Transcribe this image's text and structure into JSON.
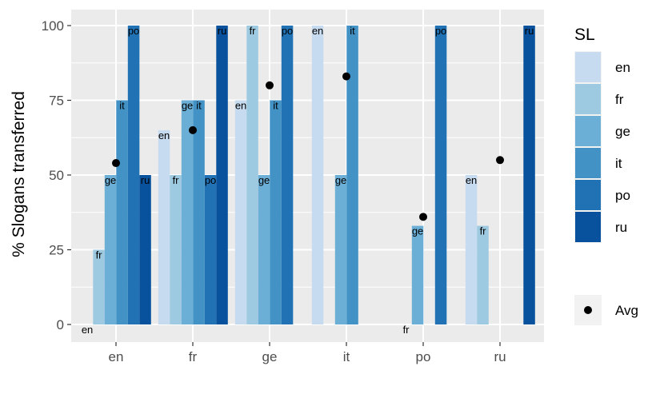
{
  "chart_data": {
    "type": "bar",
    "title": "",
    "xlabel": "",
    "ylabel": "% Slogans transferred",
    "ylim": [
      -5,
      105
    ],
    "grid": true,
    "categories": [
      "en",
      "fr",
      "ge",
      "it",
      "po",
      "ru"
    ],
    "yticks": [
      "0",
      "25",
      "50",
      "75",
      "100"
    ],
    "legend": {
      "title": "SL",
      "placement": "right",
      "entries": [
        "en",
        "fr",
        "ge",
        "it",
        "po",
        "ru"
      ],
      "avg_label": "Avg"
    },
    "colors": {
      "en": "#c6dbef",
      "fr": "#9ecae1",
      "ge": "#6baed6",
      "it": "#4292c6",
      "po": "#2171b5",
      "ru": "#08519c",
      "panel": "#ebebeb",
      "grid": "#ffffff",
      "avg": "#000000"
    },
    "series": [
      {
        "name": "en",
        "values": [
          0,
          65,
          75,
          100,
          null,
          50
        ]
      },
      {
        "name": "fr",
        "values": [
          25,
          50,
          100,
          null,
          0,
          33
        ]
      },
      {
        "name": "ge",
        "values": [
          50,
          75,
          50,
          50,
          33,
          null
        ]
      },
      {
        "name": "it",
        "values": [
          75,
          75,
          75,
          100,
          null,
          null
        ]
      },
      {
        "name": "po",
        "values": [
          100,
          50,
          100,
          null,
          100,
          null
        ]
      },
      {
        "name": "ru",
        "values": [
          50,
          100,
          null,
          null,
          null,
          100
        ]
      }
    ],
    "bar_labels": [
      [
        "en",
        "fr",
        "ge",
        "it",
        "po",
        "ru"
      ],
      [
        "en",
        "fr",
        "ge",
        "it",
        "po",
        "ru"
      ],
      [
        "en",
        "fr",
        "ge",
        "it",
        "po",
        null
      ],
      [
        "en",
        null,
        "ge",
        "it",
        null,
        null
      ],
      [
        null,
        "fr",
        "ge",
        null,
        "po",
        null
      ],
      [
        "en",
        "fr",
        null,
        null,
        null,
        "ru"
      ]
    ],
    "avg": [
      54,
      65,
      80,
      83,
      36,
      55
    ]
  }
}
